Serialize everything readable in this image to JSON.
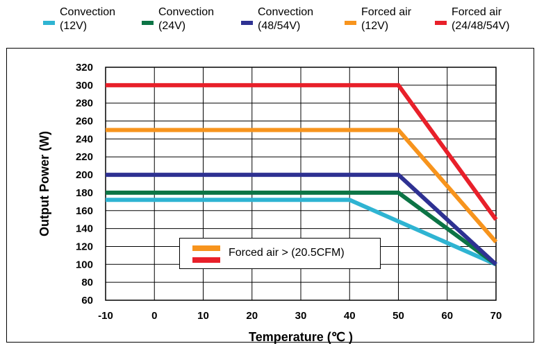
{
  "legend": [
    {
      "line1": "Convection",
      "line2": "(12V)",
      "color": "#2fb4d2"
    },
    {
      "line1": "Convection",
      "line2": "(24V)",
      "color": "#0c7445"
    },
    {
      "line1": "Convection",
      "line2": "(48/54V)",
      "color": "#2e3192"
    },
    {
      "line1": "Forced air",
      "line2": "(12V)",
      "color": "#f7941d"
    },
    {
      "line1": "Forced air",
      "line2": "(24/48/54V)",
      "color": "#e8202a"
    }
  ],
  "note": {
    "text": "Forced air > (20.5CFM)",
    "swatch_colors": [
      "#f7941d",
      "#e8202a"
    ]
  },
  "chart_data": {
    "type": "line",
    "xlabel": "Temperature (℃ )",
    "ylabel": "Output Power (W)",
    "xlim": [
      -10,
      70
    ],
    "ylim": [
      60,
      320
    ],
    "xticks": [
      -10,
      0,
      10,
      20,
      30,
      40,
      50,
      60,
      70
    ],
    "yticks": [
      60,
      80,
      100,
      120,
      140,
      160,
      180,
      200,
      220,
      240,
      260,
      280,
      300,
      320
    ],
    "grid": true,
    "series": [
      {
        "name": "Convection (12V)",
        "color": "#2fb4d2",
        "points": [
          [
            -10,
            172
          ],
          [
            40,
            172
          ],
          [
            70,
            100
          ]
        ]
      },
      {
        "name": "Convection (24V)",
        "color": "#0c7445",
        "points": [
          [
            -10,
            180
          ],
          [
            50,
            180
          ],
          [
            70,
            100
          ]
        ]
      },
      {
        "name": "Convection (48/54V)",
        "color": "#2e3192",
        "points": [
          [
            -10,
            200
          ],
          [
            50,
            200
          ],
          [
            70,
            100
          ]
        ]
      },
      {
        "name": "Forced air (12V)",
        "color": "#f7941d",
        "points": [
          [
            -10,
            250
          ],
          [
            50,
            250
          ],
          [
            70,
            125
          ]
        ]
      },
      {
        "name": "Forced air (24/48/54V)",
        "color": "#e8202a",
        "points": [
          [
            -10,
            300
          ],
          [
            50,
            300
          ],
          [
            70,
            150
          ]
        ]
      }
    ]
  }
}
